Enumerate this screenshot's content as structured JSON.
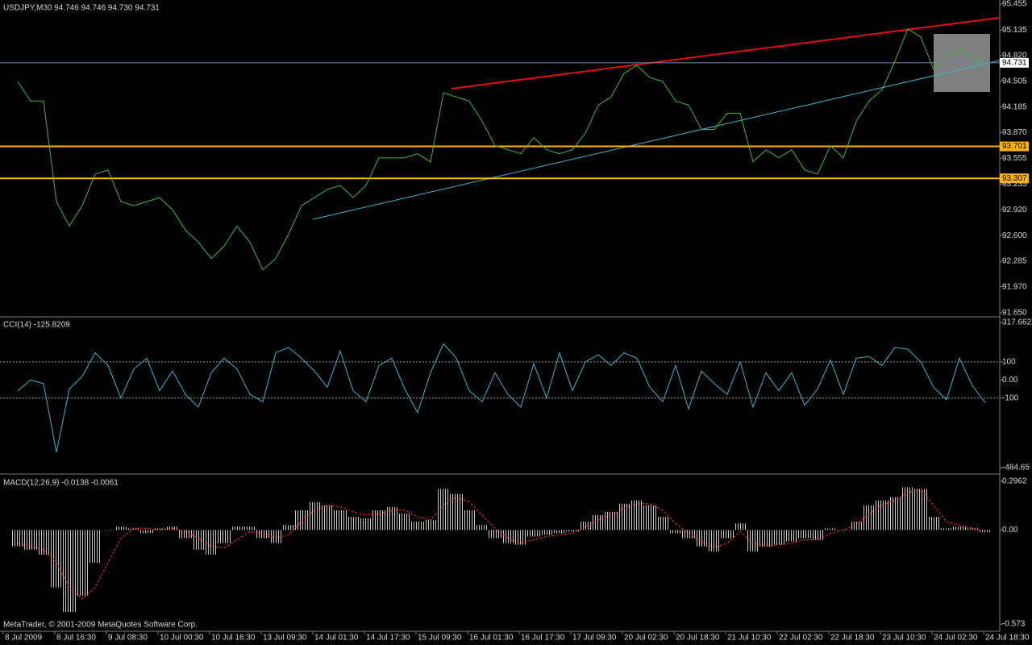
{
  "chart_data": [
    {
      "type": "line",
      "title": "USDJPY,M30  94.746 94.746 94.730 94.731",
      "categories": [
        "8 Jul 2009",
        null,
        null,
        null,
        "8 Jul 16:30",
        null,
        null,
        null,
        "9 Jul 08:30",
        null,
        null,
        null,
        "10 Jul 00:30",
        null,
        null,
        null,
        "10 Jul 16:30",
        null,
        null,
        null,
        "13 Jul 09:30",
        null,
        null,
        null,
        "14 Jul 01:30",
        null,
        null,
        null,
        "14 Jul 17:30",
        null,
        null,
        null,
        "15 Jul 09:30",
        null,
        null,
        null,
        "16 Jul 01:30",
        null,
        null,
        null,
        "16 Jul 17:30",
        null,
        null,
        null,
        "17 Jul 09:30",
        null,
        null,
        null,
        "20 Jul 02:30",
        null,
        null,
        null,
        "20 Jul 18:30",
        null,
        null,
        null,
        "21 Jul 10:30",
        null,
        null,
        null,
        "22 Jul 02:30",
        null,
        null,
        null,
        "22 Jul 18:30",
        null,
        null,
        null,
        "23 Jul 10:30",
        null,
        null,
        null,
        "24 Jul 02:30",
        null,
        null,
        null,
        "24 Jul 18:30"
      ],
      "values": [
        94.5,
        94.26,
        94.26,
        93.02,
        92.72,
        92.97,
        93.36,
        93.41,
        93.02,
        92.97,
        93.02,
        93.07,
        92.92,
        92.67,
        92.52,
        92.32,
        92.47,
        92.72,
        92.52,
        92.18,
        92.32,
        92.62,
        92.97,
        93.07,
        93.17,
        93.22,
        93.07,
        93.22,
        93.56,
        93.56,
        93.56,
        93.61,
        93.51,
        94.36,
        94.31,
        94.26,
        94.01,
        93.71,
        93.66,
        93.61,
        93.81,
        93.66,
        93.61,
        93.66,
        93.86,
        94.21,
        94.31,
        94.6,
        94.7,
        94.55,
        94.5,
        94.26,
        94.21,
        93.91,
        93.91,
        94.11,
        94.11,
        93.51,
        93.66,
        93.56,
        93.66,
        93.41,
        93.36,
        93.71,
        93.56,
        94.01,
        94.26,
        94.4,
        94.75,
        95.15,
        95.05,
        94.65,
        94.8,
        94.9,
        94.8,
        94.731,
        null
      ],
      "color": "#3cb83c",
      "ylim": [
        91.65,
        95.455
      ],
      "yticks": [
        95.455,
        95.135,
        {
          "value": 94.82,
          "label": "94.820"
        },
        94.505,
        94.185,
        {
          "value": 93.87,
          "label": "93.870"
        },
        93.555,
        93.235,
        {
          "value": 92.92,
          "label": "92.920"
        },
        {
          "value": 92.6,
          "label": "92.600"
        },
        92.285,
        {
          "value": 91.97,
          "label": "91.970"
        },
        {
          "value": 91.65,
          "label": "91.650"
        }
      ],
      "levels": [
        93.701,
        93.307
      ],
      "level_color": "#ffb400",
      "last_price": 94.731
    },
    {
      "type": "line",
      "title": "CCI(14) -125.8209",
      "values": [
        -60,
        0,
        -20,
        -400,
        -50,
        20,
        150,
        80,
        -100,
        60,
        120,
        -60,
        50,
        -80,
        -150,
        40,
        120,
        60,
        -80,
        -120,
        150,
        180,
        120,
        50,
        -40,
        160,
        -60,
        -120,
        80,
        120,
        -50,
        -180,
        40,
        200,
        120,
        -60,
        -120,
        40,
        -80,
        -150,
        90,
        -100,
        150,
        -60,
        100,
        140,
        80,
        150,
        120,
        -40,
        -120,
        80,
        -160,
        50,
        -20,
        -80,
        100,
        -150,
        40,
        -60,
        40,
        -140,
        -50,
        110,
        -80,
        120,
        130,
        80,
        180,
        170,
        100,
        -40,
        -110,
        120,
        -30,
        -125.8209,
        null
      ],
      "color": "#37b6c8",
      "ylim": [
        -484.65,
        317.6622
      ],
      "yticks": [
        317.6622,
        100,
        {
          "value": 0,
          "label": "0.00"
        },
        -100,
        -484.65
      ],
      "levels": [
        100,
        -100
      ]
    },
    {
      "type": "macd",
      "title": "MACD(12,26,9) -0.0138 -0.0061",
      "values": [
        -0.1,
        -0.12,
        -0.15,
        -0.35,
        -0.5,
        -0.4,
        -0.2,
        0.0,
        0.02,
        0.01,
        -0.02,
        0.01,
        0.02,
        -0.05,
        -0.12,
        -0.15,
        -0.08,
        0.02,
        0.02,
        -0.05,
        -0.08,
        0.03,
        0.12,
        0.17,
        0.15,
        0.12,
        0.08,
        0.07,
        0.12,
        0.14,
        0.1,
        0.05,
        0.06,
        0.25,
        0.22,
        0.12,
        0.03,
        -0.05,
        -0.08,
        -0.09,
        -0.04,
        -0.03,
        -0.02,
        -0.01,
        0.05,
        0.09,
        0.11,
        0.16,
        0.18,
        0.15,
        0.08,
        -0.02,
        -0.05,
        -0.1,
        -0.13,
        -0.05,
        0.04,
        -0.13,
        -0.1,
        -0.09,
        -0.07,
        -0.05,
        -0.06,
        0.01,
        0.0,
        0.05,
        0.15,
        0.18,
        0.2,
        0.26,
        0.25,
        0.08,
        0.01,
        0.02,
        0.01,
        -0.0138,
        null
      ],
      "signal": [
        -0.08,
        -0.1,
        -0.12,
        -0.2,
        -0.35,
        -0.42,
        -0.35,
        -0.2,
        -0.05,
        0.01,
        0.01,
        0.0,
        0.01,
        -0.01,
        -0.05,
        -0.1,
        -0.11,
        -0.06,
        -0.01,
        -0.02,
        -0.05,
        -0.03,
        0.05,
        0.12,
        0.15,
        0.14,
        0.11,
        0.09,
        0.1,
        0.12,
        0.12,
        0.08,
        0.06,
        0.15,
        0.2,
        0.17,
        0.09,
        0.01,
        -0.05,
        -0.08,
        -0.06,
        -0.04,
        -0.03,
        -0.02,
        0.02,
        0.06,
        0.09,
        0.13,
        0.16,
        0.16,
        0.12,
        0.04,
        -0.02,
        -0.07,
        -0.11,
        -0.08,
        -0.01,
        -0.08,
        -0.1,
        -0.09,
        -0.08,
        -0.06,
        -0.06,
        -0.02,
        0.0,
        0.03,
        0.1,
        0.15,
        0.18,
        0.23,
        0.25,
        0.15,
        0.05,
        0.03,
        0.01,
        -0.0061,
        null
      ],
      "color": "#c8c8c8",
      "signal_color": "#ff2a2a",
      "ylim": [
        -0.573,
        0.2962
      ],
      "yticks": [
        0.2962,
        {
          "value": 0,
          "label": "0.00"
        },
        -0.573
      ]
    }
  ],
  "footer": "MetaTrader, © 2001-2009 MetaQuotes Software Corp."
}
